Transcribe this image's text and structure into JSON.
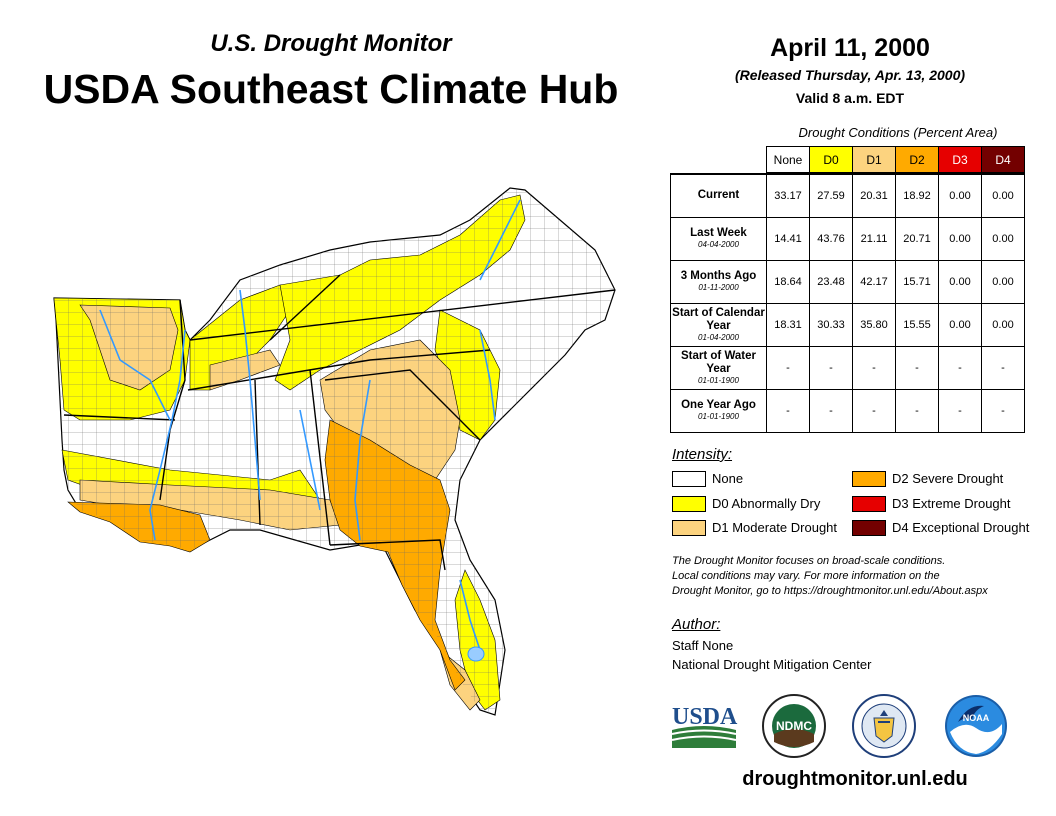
{
  "header": {
    "subtitle": "U.S. Drought Monitor",
    "title": "USDA Southeast Climate Hub",
    "date": "April 11, 2000",
    "released": "(Released Thursday, Apr. 13, 2000)",
    "valid": "Valid 8 a.m. EDT"
  },
  "table": {
    "caption": "Drought Conditions (Percent Area)",
    "columns": [
      "None",
      "D0",
      "D1",
      "D2",
      "D3",
      "D4"
    ],
    "column_colors": [
      "#ffffff",
      "#ffff00",
      "#fcd37f",
      "#ffaa00",
      "#e60000",
      "#730000"
    ],
    "rows": [
      {
        "label": "Current",
        "sub": "",
        "values": [
          "33.17",
          "27.59",
          "20.31",
          "18.92",
          "0.00",
          "0.00"
        ]
      },
      {
        "label": "Last Week",
        "sub": "04-04-2000",
        "values": [
          "14.41",
          "43.76",
          "21.11",
          "20.71",
          "0.00",
          "0.00"
        ]
      },
      {
        "label": "3 Months Ago",
        "sub": "01-11-2000",
        "values": [
          "18.64",
          "23.48",
          "42.17",
          "15.71",
          "0.00",
          "0.00"
        ]
      },
      {
        "label": "Start of Calendar Year",
        "sub": "01-04-2000",
        "values": [
          "18.31",
          "30.33",
          "35.80",
          "15.55",
          "0.00",
          "0.00"
        ]
      },
      {
        "label": "Start of Water Year",
        "sub": "01-01-1900",
        "values": [
          "-",
          "-",
          "-",
          "-",
          "-",
          "-"
        ]
      },
      {
        "label": "One Year Ago",
        "sub": "01-01-1900",
        "values": [
          "-",
          "-",
          "-",
          "-",
          "-",
          "-"
        ]
      }
    ]
  },
  "legend": {
    "title": "Intensity:",
    "items": [
      {
        "label": "None",
        "color": "#ffffff"
      },
      {
        "label": "D0 Abnormally Dry",
        "color": "#ffff00"
      },
      {
        "label": "D1 Moderate Drought",
        "color": "#fcd37f"
      },
      {
        "label": "D2 Severe Drought",
        "color": "#ffaa00"
      },
      {
        "label": "D3 Extreme Drought",
        "color": "#e60000"
      },
      {
        "label": "D4 Exceptional Drought",
        "color": "#730000"
      }
    ]
  },
  "note": {
    "line1": "The Drought Monitor focuses on broad-scale conditions.",
    "line2": "Local conditions may vary. For more information on the",
    "line3": "Drought Monitor, go to https://droughtmonitor.unl.edu/About.aspx"
  },
  "author": {
    "title": "Author:",
    "name": "Staff None",
    "org": "National Drought Mitigation Center"
  },
  "logos": {
    "usda": "USDA",
    "ndmc": "NDMC",
    "noaa": "NOAA"
  },
  "footer_url": "droughtmonitor.unl.edu"
}
